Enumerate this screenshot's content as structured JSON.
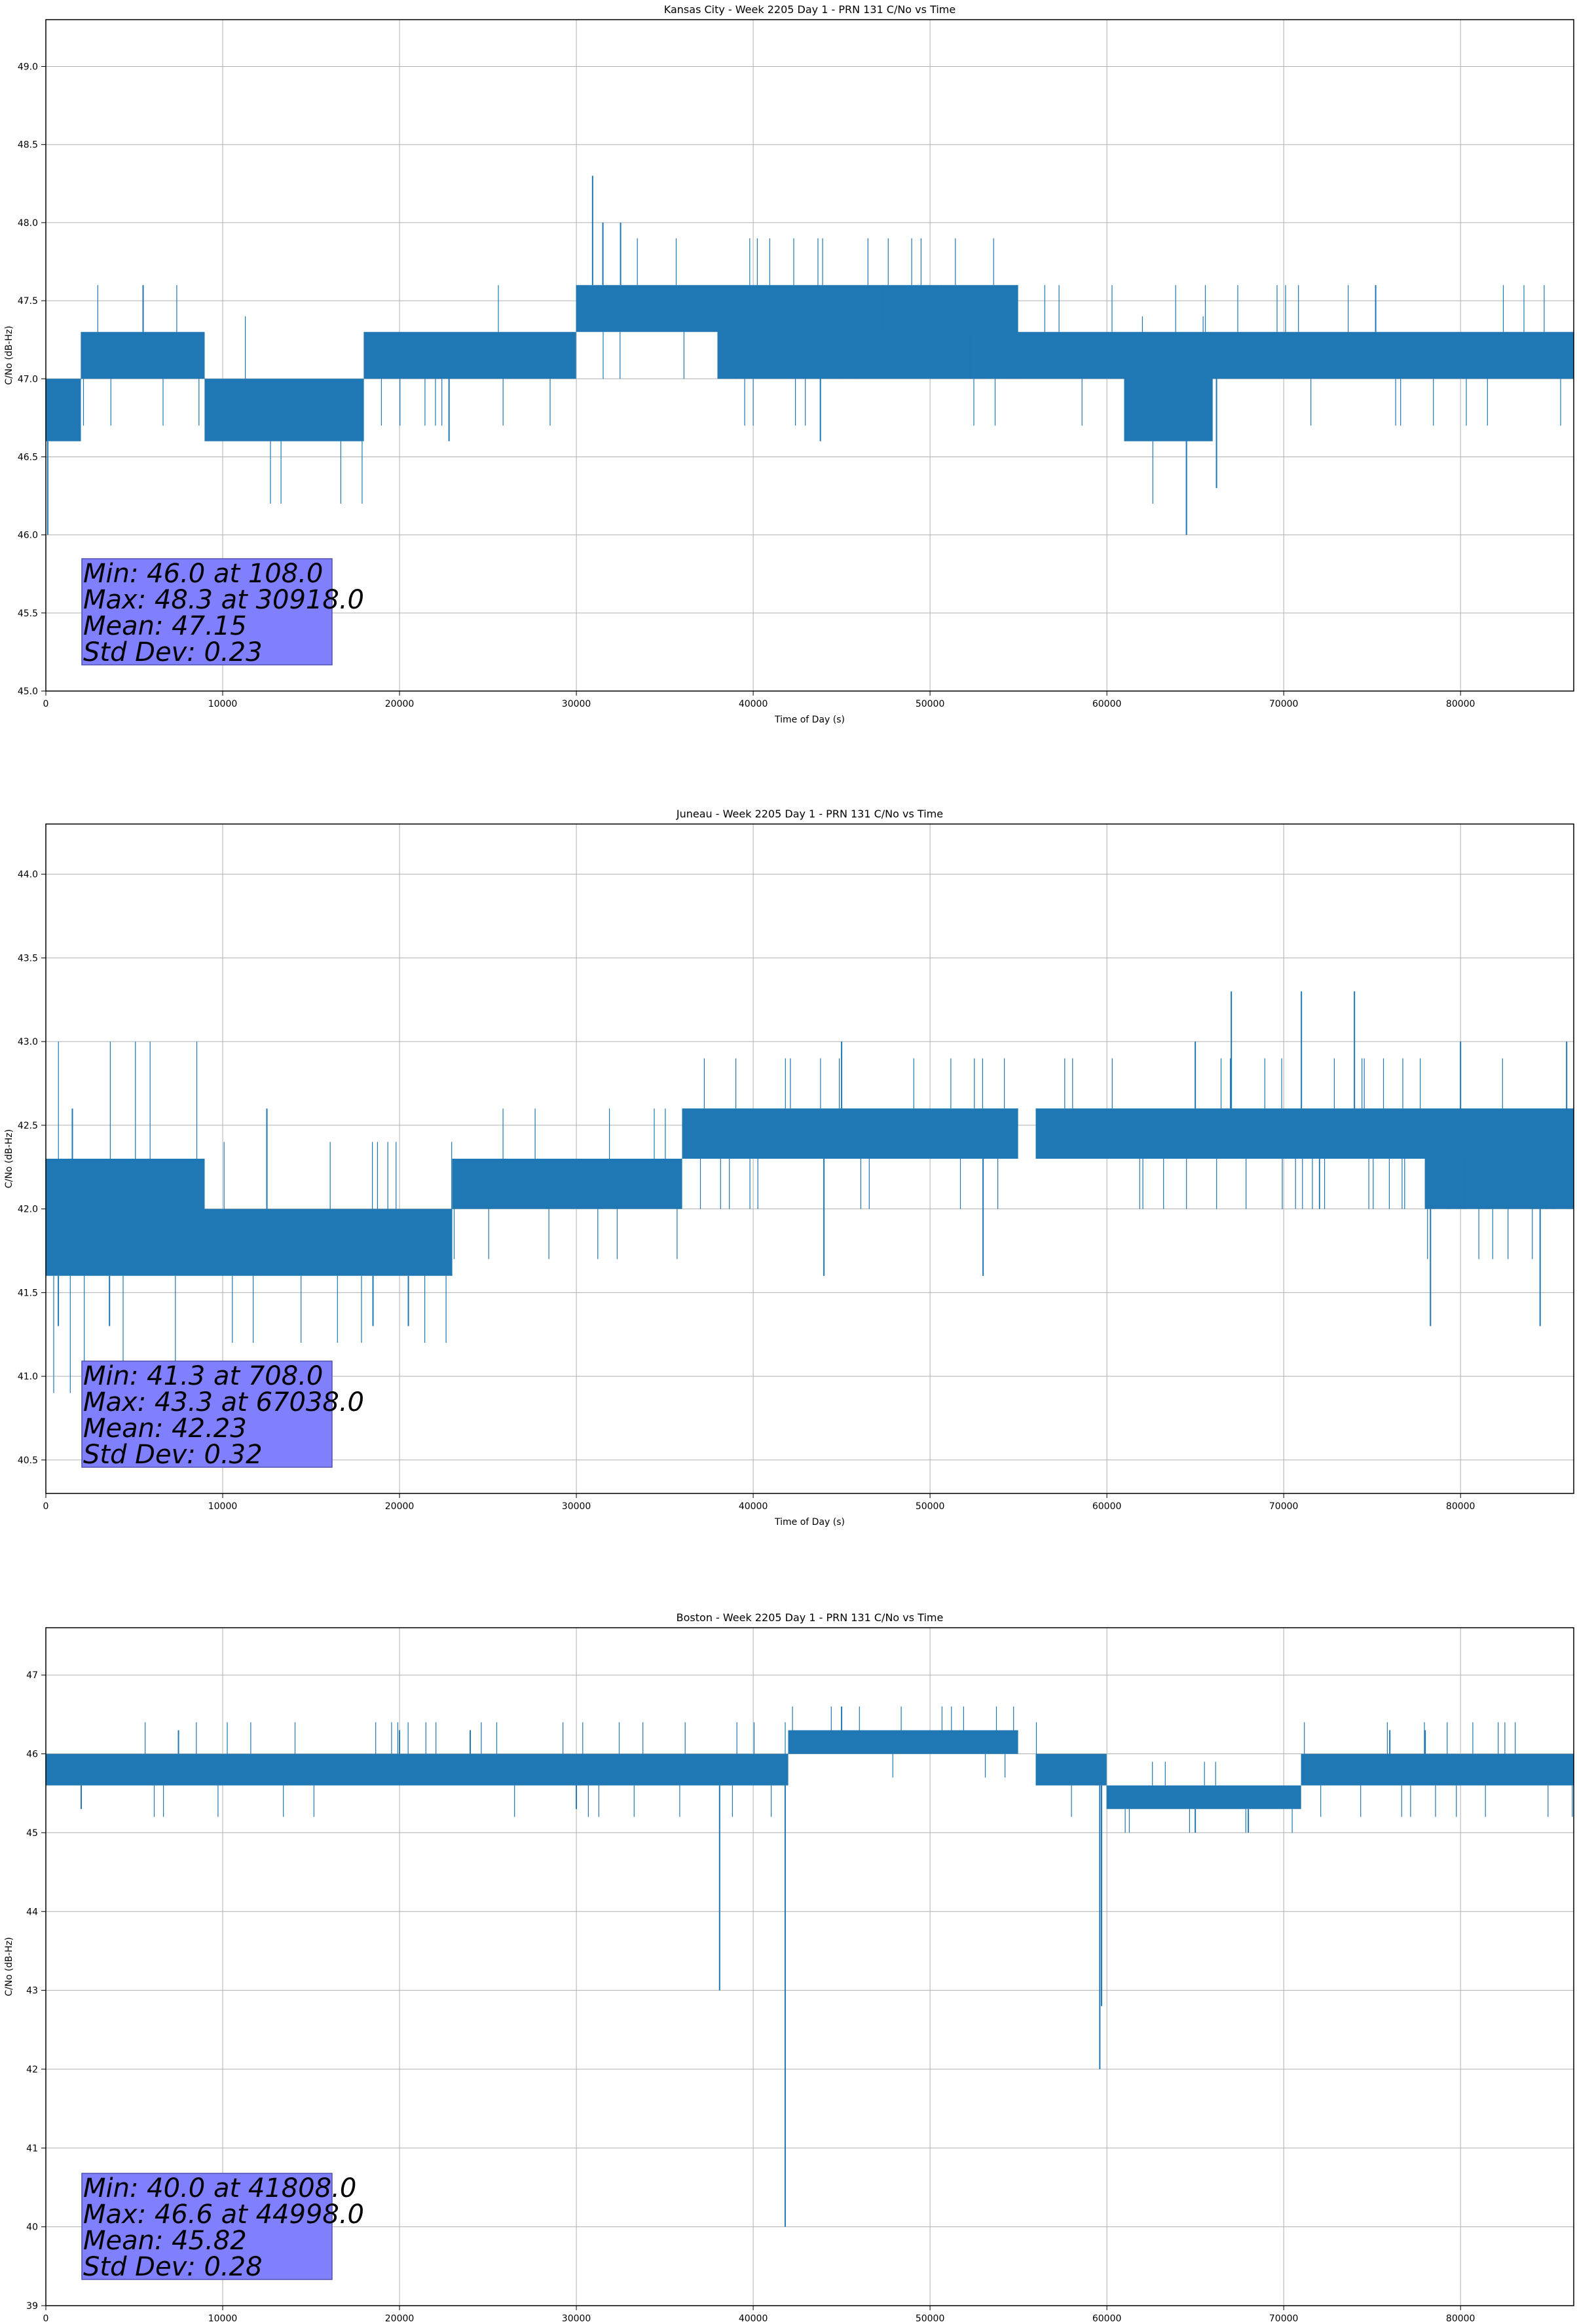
{
  "chart_data": [
    {
      "type": "line",
      "title": "Kansas City - Week 2205 Day 1 - PRN 131 C/No vs Time",
      "xlabel": "Time of Day (s)",
      "ylabel": "C/No (dB-Hz)",
      "xlim": [
        0,
        86400
      ],
      "ylim": [
        45.0,
        49.3
      ],
      "xticks": [
        0,
        10000,
        20000,
        30000,
        40000,
        50000,
        60000,
        70000,
        80000
      ],
      "xtick_labels": [
        "0",
        "10000",
        "20000",
        "30000",
        "40000",
        "50000",
        "60000",
        "70000",
        "80000"
      ],
      "yticks": [
        45.0,
        45.5,
        46.0,
        46.5,
        47.0,
        47.5,
        48.0,
        48.5,
        49.0
      ],
      "ytick_labels": [
        "45.0",
        "45.5",
        "46.0",
        "46.5",
        "47.0",
        "47.5",
        "48.0",
        "48.5",
        "49.0"
      ],
      "grid": true,
      "color": "#1f77b4",
      "series": [
        {
          "name": "C/No",
          "bands": [
            {
              "x0": 0,
              "x1": 2000,
              "lo": 46.6,
              "hi": 47.0
            },
            {
              "x0": 2000,
              "x1": 9000,
              "lo": 47.0,
              "hi": 47.3
            },
            {
              "x0": 9000,
              "x1": 18000,
              "lo": 46.6,
              "hi": 47.0
            },
            {
              "x0": 18000,
              "x1": 30000,
              "lo": 47.0,
              "hi": 47.3
            },
            {
              "x0": 30000,
              "x1": 33000,
              "lo": 47.3,
              "hi": 47.6
            },
            {
              "x0": 33000,
              "x1": 55000,
              "lo": 47.3,
              "hi": 47.6
            },
            {
              "x0": 38000,
              "x1": 61000,
              "lo": 47.0,
              "hi": 47.3
            },
            {
              "x0": 61000,
              "x1": 66000,
              "lo": 46.6,
              "hi": 47.0
            },
            {
              "x0": 61000,
              "x1": 86400,
              "lo": 47.0,
              "hi": 47.3
            }
          ],
          "spikes": [
            [
              108,
              46.0
            ],
            [
              5500,
              47.6
            ],
            [
              30918,
              48.3
            ],
            [
              31500,
              48.0
            ],
            [
              32500,
              48.0
            ],
            [
              22800,
              46.6
            ],
            [
              64500,
              46.0
            ],
            [
              66200,
              46.3
            ],
            [
              75200,
              47.6
            ],
            [
              43800,
              46.6
            ]
          ]
        }
      ],
      "annotation": [
        "Min: 46.0 at 108.0",
        "Max: 48.3 at 30918.0",
        "Mean: 47.15",
        "Std Dev: 0.23"
      ]
    },
    {
      "type": "line",
      "title": "Juneau - Week 2205 Day 1 - PRN 131 C/No vs Time",
      "xlabel": "Time of Day (s)",
      "ylabel": "C/No (dB-Hz)",
      "xlim": [
        0,
        86400
      ],
      "ylim": [
        40.3,
        44.3
      ],
      "xticks": [
        0,
        10000,
        20000,
        30000,
        40000,
        50000,
        60000,
        70000,
        80000
      ],
      "xtick_labels": [
        "0",
        "10000",
        "20000",
        "30000",
        "40000",
        "50000",
        "60000",
        "70000",
        "80000"
      ],
      "yticks": [
        40.5,
        41.0,
        41.5,
        42.0,
        42.5,
        43.0,
        43.5,
        44.0
      ],
      "ytick_labels": [
        "40.5",
        "41.0",
        "41.5",
        "42.0",
        "42.5",
        "43.0",
        "43.5",
        "44.0"
      ],
      "grid": true,
      "color": "#1f77b4",
      "series": [
        {
          "name": "C/No",
          "bands": [
            {
              "x0": 0,
              "x1": 9000,
              "lo": 41.6,
              "hi": 42.3
            },
            {
              "x0": 9000,
              "x1": 23000,
              "lo": 41.6,
              "hi": 42.0
            },
            {
              "x0": 23000,
              "x1": 36000,
              "lo": 42.0,
              "hi": 42.3
            },
            {
              "x0": 36000,
              "x1": 55000,
              "lo": 42.3,
              "hi": 42.6
            },
            {
              "x0": 56000,
              "x1": 78000,
              "lo": 42.3,
              "hi": 42.6
            },
            {
              "x0": 78000,
              "x1": 86400,
              "lo": 42.0,
              "hi": 42.3
            },
            {
              "x0": 60000,
              "x1": 86400,
              "lo": 42.3,
              "hi": 42.6
            }
          ],
          "spikes": [
            [
              708,
              41.3
            ],
            [
              3600,
              41.3
            ],
            [
              1500,
              42.6
            ],
            [
              12500,
              42.6
            ],
            [
              67038,
              43.3
            ],
            [
              71000,
              43.3
            ],
            [
              74000,
              43.3
            ],
            [
              78300,
              41.3
            ],
            [
              84500,
              41.3
            ],
            [
              18500,
              41.3
            ],
            [
              20500,
              41.3
            ],
            [
              65000,
              43.0
            ],
            [
              80000,
              43.0
            ],
            [
              86000,
              43.0
            ],
            [
              45000,
              43.0
            ],
            [
              44000,
              41.6
            ],
            [
              53000,
              41.6
            ]
          ]
        }
      ],
      "annotation": [
        "Min: 41.3 at 708.0",
        "Max: 43.3 at 67038.0",
        "Mean: 42.23",
        "Std Dev: 0.32"
      ]
    },
    {
      "type": "line",
      "title": "Boston - Week 2205 Day 1 - PRN 131 C/No vs Time",
      "xlabel": "Time of Day (s)",
      "ylabel": "C/No (dB-Hz)",
      "xlim": [
        0,
        86400
      ],
      "ylim": [
        39,
        47.6
      ],
      "xticks": [
        0,
        10000,
        20000,
        30000,
        40000,
        50000,
        60000,
        70000,
        80000
      ],
      "xtick_labels": [
        "0",
        "10000",
        "20000",
        "30000",
        "40000",
        "50000",
        "60000",
        "70000",
        "80000"
      ],
      "yticks": [
        39,
        40,
        41,
        42,
        43,
        44,
        45,
        46,
        47
      ],
      "ytick_labels": [
        "39",
        "40",
        "41",
        "42",
        "43",
        "44",
        "45",
        "46",
        "47"
      ],
      "grid": true,
      "color": "#1f77b4",
      "series": [
        {
          "name": "C/No",
          "bands": [
            {
              "x0": 0,
              "x1": 42000,
              "lo": 45.6,
              "hi": 46.0
            },
            {
              "x0": 42000,
              "x1": 55000,
              "lo": 46.0,
              "hi": 46.3
            },
            {
              "x0": 56000,
              "x1": 60000,
              "lo": 45.6,
              "hi": 46.0
            },
            {
              "x0": 60000,
              "x1": 71000,
              "lo": 45.3,
              "hi": 45.6
            },
            {
              "x0": 71000,
              "x1": 86400,
              "lo": 45.6,
              "hi": 46.0
            }
          ],
          "spikes": [
            [
              38100,
              43.0
            ],
            [
              41808,
              40.0
            ],
            [
              44998,
              46.6
            ],
            [
              59600,
              42.0
            ],
            [
              59700,
              42.8
            ],
            [
              30000,
              45.3
            ],
            [
              65000,
              45.0
            ],
            [
              68000,
              45.0
            ],
            [
              7500,
              46.3
            ],
            [
              20000,
              46.3
            ],
            [
              24000,
              46.3
            ],
            [
              76000,
              46.3
            ],
            [
              78000,
              46.3
            ],
            [
              2000,
              45.3
            ]
          ]
        }
      ],
      "annotation": [
        "Min: 40.0 at 41808.0",
        "Max: 46.6 at 44998.0",
        "Mean: 45.82",
        "Std Dev: 0.28"
      ]
    }
  ]
}
